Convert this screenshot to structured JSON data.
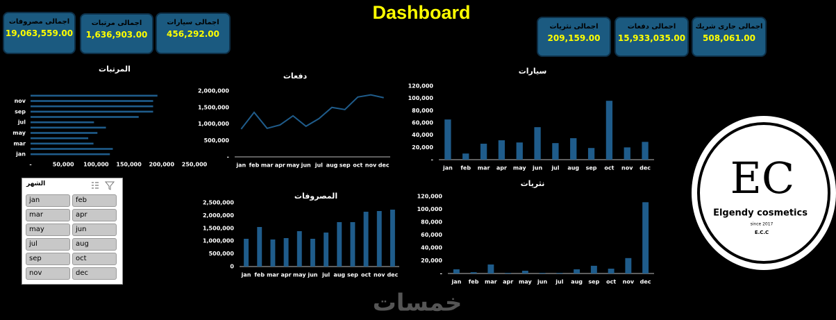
{
  "header": {
    "title": "Dashboard"
  },
  "kpis": [
    {
      "label": "اجمالى مصروفات",
      "value": "19,063,559.00"
    },
    {
      "label": "اجمالى مرتبات",
      "value": "1,636,903.00"
    },
    {
      "label": "اجمالى سيارات",
      "value": "456,292.00"
    },
    {
      "label": "اجمالى نثريات",
      "value": "209,159.00"
    },
    {
      "label": "اجمالى دفعات",
      "value": "15,933,035.00"
    },
    {
      "label": "اجمالى جارى شريك",
      "value": "508,061.00"
    }
  ],
  "chart_data": [
    {
      "type": "bar",
      "orientation": "horizontal",
      "title": "المرتبات",
      "color": "#1f5c8b",
      "grid": false,
      "categories": [
        "jan",
        null,
        "mar",
        null,
        "may",
        null,
        "jul",
        null,
        "sep",
        null,
        "nov",
        null
      ],
      "values": [
        121000,
        125500,
        96000,
        88000,
        102000,
        115000,
        96800,
        165000,
        187000,
        187000,
        187000,
        193600
      ],
      "xlim": [
        0,
        250000
      ],
      "xticks": [
        {
          "value": 0,
          "label": "-"
        },
        {
          "value": 50000,
          "label": "50,000"
        },
        {
          "value": 100000,
          "label": "100,000"
        },
        {
          "value": 150000,
          "label": "150,000"
        },
        {
          "value": 200000,
          "label": "200,000"
        },
        {
          "value": 250000,
          "label": "250,000"
        }
      ]
    },
    {
      "type": "line",
      "title": "دفعات",
      "color": "#1f5c8b",
      "grid": false,
      "categories": [
        "jan",
        "feb",
        "mar",
        "apr",
        "may",
        "jun",
        "jul",
        "aug",
        "sep",
        "oct",
        "nov",
        "dec"
      ],
      "values": [
        844000,
        1350000,
        865000,
        970000,
        1245000,
        928000,
        1160000,
        1500000,
        1435000,
        1815000,
        1880000,
        1795000
      ],
      "ylim": [
        0,
        2000000
      ],
      "yticks": [
        {
          "value": 0,
          "label": "-"
        },
        {
          "value": 500000,
          "label": "500,000"
        },
        {
          "value": 1000000,
          "label": "1,000,000"
        },
        {
          "value": 1500000,
          "label": "1,500,000"
        },
        {
          "value": 2000000,
          "label": "2,000,000"
        }
      ]
    },
    {
      "type": "bar",
      "title": "سيارات",
      "color": "#1f5c8b",
      "grid": false,
      "categories": [
        "jan",
        "feb",
        "mar",
        "apr",
        "may",
        "jun",
        "jul",
        "aug",
        "sep",
        "oct",
        "nov",
        "dec"
      ],
      "values": [
        65500,
        10000,
        26000,
        31600,
        28000,
        53000,
        27000,
        35000,
        19000,
        96000,
        20000,
        29000
      ],
      "ylim": [
        0,
        120000
      ],
      "yticks": [
        {
          "value": 0,
          "label": "-"
        },
        {
          "value": 20000,
          "label": "20,000"
        },
        {
          "value": 40000,
          "label": "40,000"
        },
        {
          "value": 60000,
          "label": "60,000"
        },
        {
          "value": 80000,
          "label": "80,000"
        },
        {
          "value": 100000,
          "label": "100,000"
        },
        {
          "value": 120000,
          "label": "120,000"
        }
      ]
    },
    {
      "type": "bar",
      "title": "المصروفات",
      "color": "#1f5c8b",
      "grid": false,
      "categories": [
        "jan",
        "feb",
        "mar",
        "apr",
        "may",
        "jun",
        "jul",
        "aug",
        "sep",
        "oct",
        "nov",
        "dec"
      ],
      "values": [
        1087000,
        1549000,
        1060000,
        1114000,
        1386000,
        1087000,
        1331000,
        1739000,
        1739000,
        2146000,
        2174000,
        2228000
      ],
      "ylim": [
        0,
        2500000
      ],
      "yticks": [
        {
          "value": 0,
          "label": "0"
        },
        {
          "value": 500000,
          "label": "500,000"
        },
        {
          "value": 1000000,
          "label": "1,000,000"
        },
        {
          "value": 1500000,
          "label": "1,500,000"
        },
        {
          "value": 2000000,
          "label": "2,000,000"
        },
        {
          "value": 2500000,
          "label": "2,500,000"
        }
      ]
    },
    {
      "type": "bar",
      "title": "نثريات",
      "color": "#1f5c8b",
      "grid": false,
      "categories": [
        "jan",
        "feb",
        "mar",
        "apr",
        "may",
        "jun",
        "jul",
        "aug",
        "sep",
        "oct",
        "nov",
        "dec"
      ],
      "values": [
        6500,
        2000,
        14000,
        1000,
        4300,
        1000,
        1000,
        6500,
        12000,
        7500,
        24000,
        111000
      ],
      "ylim": [
        0,
        120000
      ],
      "yticks": [
        {
          "value": 0,
          "label": "-"
        },
        {
          "value": 20000,
          "label": "20,000"
        },
        {
          "value": 40000,
          "label": "40,000"
        },
        {
          "value": 60000,
          "label": "60,000"
        },
        {
          "value": 80000,
          "label": "80,000"
        },
        {
          "value": 100000,
          "label": "100,000"
        },
        {
          "value": 120000,
          "label": "120,000"
        }
      ]
    }
  ],
  "slicer": {
    "title": "الشهر",
    "items": [
      "jan",
      "feb",
      "mar",
      "apr",
      "may",
      "jun",
      "jul",
      "aug",
      "sep",
      "oct",
      "nov",
      "dec"
    ]
  },
  "logo": {
    "monogram": "EC",
    "name": "Elgendy cosmetics",
    "since": "since 2017",
    "abbr": "E.C.C"
  },
  "watermark": "خمسات"
}
